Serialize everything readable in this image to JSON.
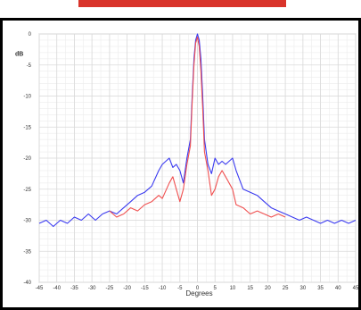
{
  "colors": {
    "banner": "#d9342b",
    "blue_series": "#3a3af0",
    "red_series": "#f05050",
    "grid": "#d9d9d9"
  },
  "chart_data": {
    "type": "line",
    "xlabel": "Degrees",
    "ylabel": "dB",
    "xlim": [
      -45,
      45
    ],
    "ylim": [
      -40,
      0
    ],
    "x_ticks": [
      -45,
      -40,
      -35,
      -30,
      -25,
      -20,
      -15,
      -10,
      -5,
      0,
      5,
      10,
      15,
      20,
      25,
      30,
      35,
      40,
      45
    ],
    "y_ticks": [
      0,
      -5,
      -10,
      -15,
      -20,
      -25,
      -30,
      -35,
      -40
    ],
    "grid": true,
    "series": [
      {
        "color": "#3a3af0",
        "x": [
          -45,
          -43,
          -41,
          -39,
          -37,
          -35,
          -33,
          -31,
          -29,
          -27,
          -25,
          -23,
          -21,
          -19,
          -17,
          -15,
          -13,
          -11,
          -10,
          -8,
          -7,
          -6,
          -5,
          -4,
          -3,
          -2,
          -1.5,
          -1,
          -0.5,
          0,
          0.5,
          1,
          1.5,
          2,
          3,
          4,
          5,
          6,
          7,
          8,
          10,
          11,
          13,
          15,
          17,
          19,
          21,
          23,
          25,
          27,
          29,
          31,
          33,
          35,
          37,
          39,
          41,
          43,
          45
        ],
        "y": [
          -30.5,
          -30,
          -31,
          -30,
          -30.5,
          -29.5,
          -30,
          -29,
          -30,
          -29,
          -28.5,
          -29,
          -28,
          -27,
          -26,
          -25.5,
          -24.5,
          -22,
          -21,
          -20,
          -21.5,
          -21,
          -22,
          -24,
          -20,
          -17,
          -10,
          -4,
          -1,
          0,
          -1,
          -4,
          -10,
          -17,
          -21,
          -22.5,
          -20,
          -21,
          -20.5,
          -21,
          -20,
          -22,
          -25,
          -25.5,
          -26,
          -27,
          -28,
          -28.5,
          -29,
          -29.5,
          -30,
          -29.5,
          -30,
          -30.5,
          -30,
          -30.5,
          -30,
          -30.5,
          -30
        ]
      },
      {
        "color": "#f05050",
        "x": [
          -25,
          -23,
          -21,
          -19,
          -17,
          -15,
          -13,
          -11,
          -10,
          -8,
          -7,
          -6,
          -5,
          -4,
          -3,
          -2,
          -1.5,
          -1,
          -0.5,
          0,
          0.5,
          1,
          1.5,
          2,
          3,
          4,
          5,
          6,
          7,
          8,
          10,
          11,
          13,
          15,
          17,
          19,
          21,
          23,
          25
        ],
        "y": [
          -28.5,
          -29.5,
          -29,
          -28,
          -28.5,
          -27.5,
          -27,
          -26,
          -26.5,
          -24,
          -23,
          -25,
          -27,
          -25,
          -21,
          -18,
          -11,
          -5,
          -1.5,
          -0.5,
          -2,
          -6,
          -12,
          -19,
          -22,
          -26,
          -25,
          -23,
          -22,
          -23,
          -25,
          -27.5,
          -28,
          -29,
          -28.5,
          -29,
          -29.5,
          -29,
          -29.5
        ]
      }
    ]
  }
}
